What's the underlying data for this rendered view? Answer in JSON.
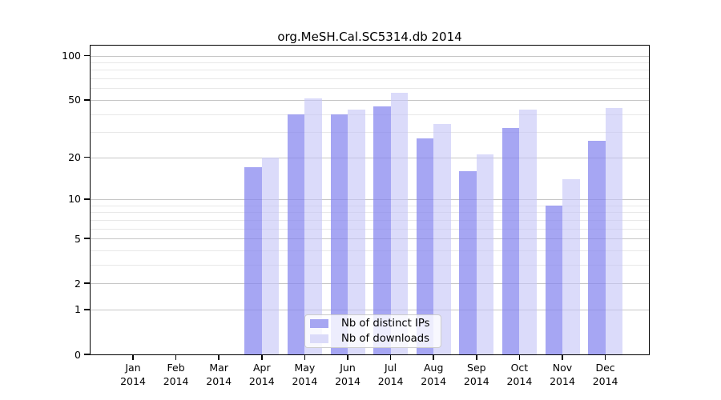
{
  "chart_data": {
    "type": "bar",
    "title": "org.MeSH.Cal.SC5314.db 2014",
    "x": [
      "Jan",
      "Feb",
      "Mar",
      "Apr",
      "May",
      "Jun",
      "Jul",
      "Aug",
      "Sep",
      "Oct",
      "Nov",
      "Dec"
    ],
    "x_year": "2014",
    "series": [
      {
        "name": "Nb of distinct IPs",
        "color": "rgba(132,132,238,0.72)",
        "legend_color": "#a6a6f2",
        "values": [
          0,
          0,
          0,
          17,
          40,
          40,
          45,
          27,
          16,
          32,
          9,
          26
        ]
      },
      {
        "name": "Nb of downloads",
        "color": "rgba(197,197,247,0.62)",
        "legend_color": "#dbdbf9",
        "values": [
          0,
          0,
          0,
          20,
          51,
          43,
          56,
          34,
          21,
          43,
          14,
          44
        ]
      }
    ],
    "y_ticks": [
      0,
      1,
      2,
      5,
      10,
      20,
      50,
      100
    ],
    "y_minor_gridlines": [
      3,
      4,
      6,
      7,
      8,
      9,
      30,
      40,
      60,
      70,
      80,
      90
    ],
    "y_scale": "log10(1+v)",
    "y_max": 115,
    "xlabel": "",
    "ylabel": "",
    "grid": true,
    "legend_position": "bottom-center-inside"
  },
  "colors": {
    "background": "#ffffff",
    "axis": "#000000",
    "text": "#000000",
    "grid_major": "#c6c6c6",
    "grid_minor": "#e8e8e8",
    "legend_border": "#cccccc",
    "legend_bg": "rgba(255,255,255,0.8)"
  }
}
